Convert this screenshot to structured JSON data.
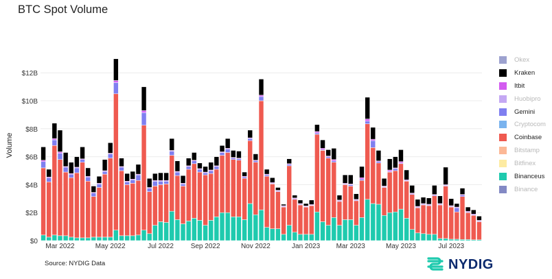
{
  "title": "BTC Spot Volume",
  "source": "Source: NYDIG Data",
  "logo": {
    "text": "NYDIG",
    "icon": "nydig-logo-icon"
  },
  "colors": {
    "okex": "#9da2cf",
    "kraken": "#000000",
    "itbit": "#d35cf0",
    "huobipro": "#c4a8f3",
    "gemini": "#7f7ff0",
    "cryptocom": "#7ab3ee",
    "coinbase": "#ef5a50",
    "bitstamp": "#fcb896",
    "bitfinex": "#fdeba2",
    "binanceus": "#1fcaae",
    "binance": "#8389c4",
    "grid": "#ececec",
    "logo_teal": "#1fcaae",
    "logo_navy": "#0c2a6e"
  },
  "chart_data": {
    "type": "bar",
    "stacked": true,
    "title": "BTC Spot Volume",
    "xlabel": "",
    "ylabel": "Volume",
    "ylim": [
      0,
      14
    ],
    "y_unit": "$B",
    "y_ticks": [
      "$0",
      "$2B",
      "$4B",
      "$6B",
      "$8B",
      "$10B",
      "$12B"
    ],
    "y_tick_values": [
      0,
      2,
      4,
      6,
      8,
      10,
      12
    ],
    "x_tick_labels": [
      "Mar 2022",
      "May 2022",
      "Jul 2022",
      "Sep 2022",
      "Nov 2022",
      "Jan 2023",
      "Mar 2023",
      "May 2023",
      "Jul 2023"
    ],
    "x_tick_bar_index": [
      3,
      12,
      21,
      29,
      38,
      47,
      55,
      64,
      73
    ],
    "grid": true,
    "legend_position": "right",
    "legend": [
      {
        "name": "Okex",
        "key": "okex",
        "visible": false
      },
      {
        "name": "Kraken",
        "key": "kraken",
        "visible": true
      },
      {
        "name": "Itbit",
        "key": "itbit",
        "visible": true
      },
      {
        "name": "Huobipro",
        "key": "huobipro",
        "visible": false
      },
      {
        "name": "Gemini",
        "key": "gemini",
        "visible": true
      },
      {
        "name": "Cryptocom",
        "key": "cryptocom",
        "visible": false
      },
      {
        "name": "Coinbase",
        "key": "coinbase",
        "visible": true
      },
      {
        "name": "Bitstamp",
        "key": "bitstamp",
        "visible": false
      },
      {
        "name": "Bitfinex",
        "key": "bitfinex",
        "visible": false
      },
      {
        "name": "Binanceus",
        "key": "binanceus",
        "visible": true
      },
      {
        "name": "Binance",
        "key": "binance",
        "visible": false
      }
    ],
    "stack_order": [
      "binanceus",
      "coinbase",
      "gemini",
      "itbit",
      "kraken"
    ],
    "series": [
      {
        "name": "Binanceus",
        "key": "binanceus",
        "values": [
          0.4,
          0.25,
          0.4,
          0.35,
          0.35,
          0.25,
          0.2,
          0.2,
          0.2,
          0.25,
          0.25,
          0.25,
          0.25,
          0.75,
          0.35,
          0.35,
          0.35,
          0.4,
          0.75,
          0.5,
          1.1,
          1.35,
          1.3,
          2.1,
          1.5,
          1.2,
          1.4,
          1.6,
          1.45,
          1.1,
          1.45,
          1.7,
          2.0,
          2.0,
          1.7,
          1.7,
          1.5,
          2.65,
          1.85,
          2.2,
          0.95,
          0.85,
          0.85,
          0.45,
          1.1,
          0.6,
          0.45,
          0.45,
          0.45,
          2.05,
          1.35,
          1.1,
          1.65,
          1.1,
          1.5,
          1.5,
          1.1,
          1.65,
          2.95,
          2.65,
          2.6,
          1.8,
          2.0,
          2.05,
          2.25,
          1.6,
          0.8,
          0.55,
          0.5,
          0.45,
          0.45,
          0.15,
          0.15,
          0.1,
          0.1,
          0.08,
          0.08,
          0.06,
          0.06
        ]
      },
      {
        "name": "Coinbase",
        "key": "coinbase",
        "values": [
          4.8,
          3.95,
          6.4,
          5.45,
          4.55,
          4.25,
          4.65,
          5.4,
          4.05,
          2.9,
          3.55,
          4.5,
          5.65,
          9.75,
          4.65,
          3.65,
          3.75,
          3.9,
          7.5,
          3.0,
          2.8,
          2.65,
          2.75,
          4.0,
          3.15,
          2.7,
          3.7,
          3.9,
          3.45,
          3.6,
          3.35,
          3.4,
          4.1,
          4.3,
          4.1,
          4.05,
          2.95,
          4.5,
          3.75,
          7.8,
          3.65,
          3.2,
          2.65,
          1.95,
          4.25,
          2.35,
          2.1,
          1.95,
          2.05,
          5.55,
          5.1,
          4.8,
          3.95,
          1.7,
          2.5,
          2.4,
          1.75,
          2.65,
          5.4,
          4.0,
          2.95,
          2.0,
          2.9,
          2.95,
          3.25,
          2.65,
          2.5,
          1.8,
          2.05,
          2.05,
          2.75,
          2.4,
          3.75,
          2.3,
          1.95,
          3.07,
          1.92,
          1.74,
          1.29
        ]
      },
      {
        "name": "Gemini",
        "key": "gemini",
        "values": [
          0.45,
          0.3,
          0.4,
          0.45,
          0.35,
          0.25,
          0.35,
          0.2,
          0.3,
          0.25,
          0.25,
          0.2,
          0.3,
          0.8,
          0.25,
          0.2,
          0.25,
          0.4,
          0.9,
          0.25,
          0.35,
          0.25,
          0.2,
          0.3,
          0.25,
          0.15,
          0.2,
          0.2,
          0.2,
          0.15,
          0.2,
          0.2,
          0.2,
          0.25,
          0.1,
          0.1,
          0.1,
          0.15,
          0.1,
          0.3,
          0.1,
          0.05,
          0.05,
          0.05,
          0.1,
          0.05,
          0.05,
          0.03,
          0.03,
          0.1,
          0.05,
          0.1,
          0.1,
          0.05,
          0.05,
          0.1,
          0.05,
          0.1,
          0.2,
          0.5,
          0.1,
          0.05,
          0.05,
          0.15,
          0.05,
          0.05,
          0.05,
          0.05,
          0.05,
          0.05,
          0.05,
          0.05,
          0.05,
          0.05,
          0.3,
          0.1,
          0.05,
          0.05,
          0.05
        ]
      },
      {
        "name": "Itbit",
        "key": "itbit",
        "values": [
          0.1,
          0.05,
          0.1,
          0.1,
          0.05,
          0.05,
          0.05,
          0.05,
          0.05,
          0.05,
          0.05,
          0.05,
          0.05,
          0.15,
          0.05,
          0.05,
          0.05,
          0.05,
          0.15,
          0.05,
          0.05,
          0.05,
          0.05,
          0.05,
          0.05,
          0.05,
          0.05,
          0.05,
          0.05,
          0.05,
          0.05,
          0.05,
          0.05,
          0.05,
          0.05,
          0.05,
          0.05,
          0.05,
          0.05,
          0.1,
          0.05,
          0.05,
          0.05,
          0.05,
          0.05,
          0.05,
          0.05,
          0.05,
          0.05,
          0.1,
          0.1,
          0.05,
          0.1,
          0.05,
          0.05,
          0.05,
          0.05,
          0.1,
          0.15,
          0.1,
          0.05,
          0.05,
          0.1,
          0.05,
          0.1,
          0.05,
          0.05,
          0.05,
          0.05,
          0.05,
          0.05,
          0.05,
          0.05,
          0.05,
          0.05,
          0.05,
          0.05,
          0.05,
          0.05
        ]
      },
      {
        "name": "Kraken",
        "key": "kraken",
        "values": [
          0.95,
          0.55,
          1.1,
          1.55,
          1.0,
          0.8,
          0.75,
          0.85,
          0.6,
          0.45,
          0.5,
          0.8,
          0.75,
          1.55,
          0.6,
          0.55,
          0.55,
          0.7,
          1.7,
          0.65,
          0.5,
          0.55,
          0.55,
          0.85,
          0.75,
          0.55,
          0.55,
          0.55,
          0.4,
          0.4,
          0.55,
          0.65,
          0.45,
          0.7,
          0.5,
          0.5,
          0.3,
          0.55,
          0.45,
          1.15,
          0.35,
          0.35,
          0.2,
          0.1,
          0.35,
          0.2,
          0.25,
          0.17,
          0.32,
          0.5,
          0.6,
          0.45,
          0.8,
          0.35,
          0.6,
          0.65,
          0.4,
          0.8,
          1.55,
          0.85,
          0.75,
          0.55,
          0.8,
          0.8,
          0.85,
          0.7,
          0.55,
          0.5,
          0.45,
          0.45,
          0.65,
          0.55,
          1.25,
          0.5,
          0.25,
          0.45,
          0.3,
          0.3,
          0.3
        ]
      }
    ]
  }
}
